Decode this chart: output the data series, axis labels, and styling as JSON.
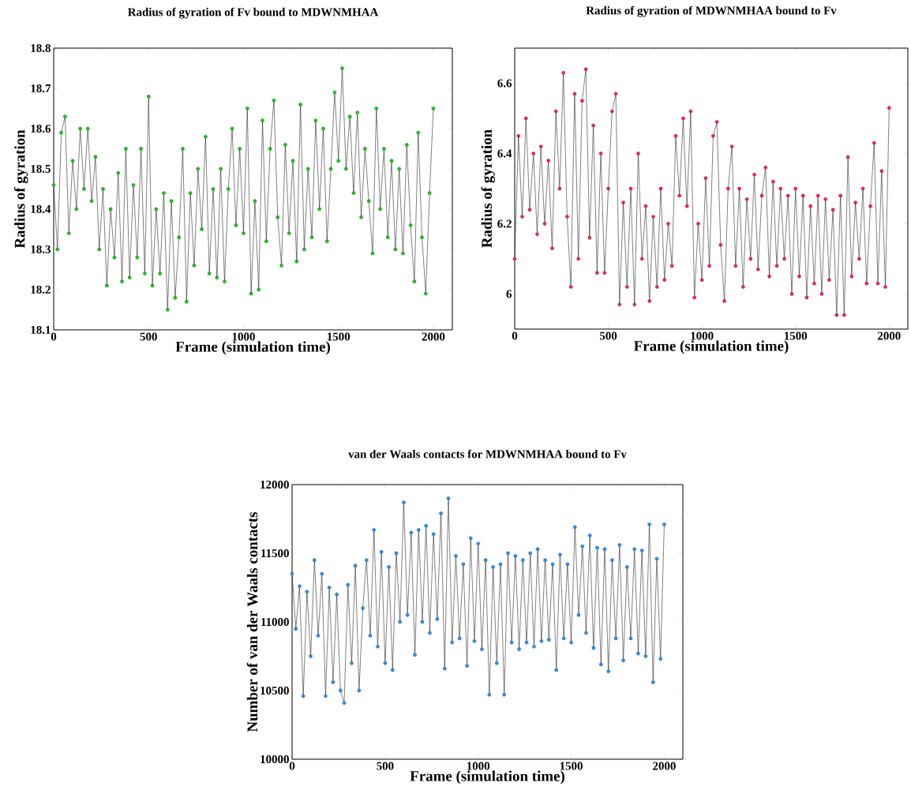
{
  "chart_data": [
    {
      "type": "line",
      "title": "Radius of gyration of Fv bound to MDWNMHAA",
      "xlabel": "Frame (simulation time)",
      "ylabel": "Radius of gyration",
      "marker": "circle",
      "x": [
        0,
        20,
        40,
        60,
        80,
        100,
        120,
        140,
        160,
        180,
        200,
        220,
        240,
        260,
        280,
        300,
        320,
        340,
        360,
        380,
        400,
        420,
        440,
        460,
        480,
        500,
        520,
        540,
        560,
        580,
        600,
        620,
        640,
        660,
        680,
        700,
        720,
        740,
        760,
        780,
        800,
        820,
        840,
        860,
        880,
        900,
        920,
        940,
        960,
        980,
        1000,
        1020,
        1040,
        1060,
        1080,
        1100,
        1120,
        1140,
        1160,
        1180,
        1200,
        1220,
        1240,
        1260,
        1280,
        1300,
        1320,
        1340,
        1360,
        1380,
        1400,
        1420,
        1440,
        1460,
        1480,
        1500,
        1520,
        1540,
        1560,
        1580,
        1600,
        1620,
        1640,
        1660,
        1680,
        1700,
        1720,
        1740,
        1760,
        1780,
        1800,
        1820,
        1840,
        1860,
        1880,
        1900,
        1920,
        1940,
        1960,
        1980,
        2000
      ],
      "series": [
        {
          "color": "#00cc00",
          "values": [
            18.46,
            18.3,
            18.59,
            18.63,
            18.34,
            18.52,
            18.4,
            18.6,
            18.45,
            18.6,
            18.42,
            18.53,
            18.3,
            18.45,
            18.21,
            18.4,
            18.28,
            18.49,
            18.22,
            18.55,
            18.23,
            18.46,
            18.28,
            18.55,
            18.24,
            18.68,
            18.21,
            18.4,
            18.24,
            18.44,
            18.15,
            18.42,
            18.18,
            18.33,
            18.55,
            18.17,
            18.44,
            18.26,
            18.5,
            18.35,
            18.58,
            18.24,
            18.45,
            18.23,
            18.5,
            18.22,
            18.45,
            18.6,
            18.36,
            18.55,
            18.34,
            18.65,
            18.19,
            18.42,
            18.2,
            18.62,
            18.32,
            18.55,
            18.67,
            18.38,
            18.26,
            18.56,
            18.34,
            18.52,
            18.27,
            18.66,
            18.3,
            18.5,
            18.33,
            18.62,
            18.4,
            18.6,
            18.32,
            18.5,
            18.69,
            18.52,
            18.75,
            18.5,
            18.63,
            18.44,
            18.64,
            18.38,
            18.55,
            18.42,
            18.29,
            18.65,
            18.4,
            18.55,
            18.33,
            18.52,
            18.3,
            18.5,
            18.29,
            18.56,
            18.36,
            18.22,
            18.59,
            18.33,
            18.19,
            18.44,
            18.65
          ]
        }
      ],
      "xlim": [
        0,
        2100
      ],
      "xticks": [
        0,
        500,
        1000,
        1500,
        2000
      ],
      "ylim": [
        18.1,
        18.8
      ],
      "yticks": [
        18.1,
        18.2,
        18.3,
        18.4,
        18.5,
        18.6,
        18.7,
        18.8
      ]
    },
    {
      "type": "line",
      "title": "Radius of gyration of MDWNMHAA bound to Fv",
      "xlabel": "Frame (simulation time)",
      "ylabel": "Radius of gyration",
      "marker": "circle",
      "x": [
        0,
        20,
        40,
        60,
        80,
        100,
        120,
        140,
        160,
        180,
        200,
        220,
        240,
        260,
        280,
        300,
        320,
        340,
        360,
        380,
        400,
        420,
        440,
        460,
        480,
        500,
        520,
        540,
        560,
        580,
        600,
        620,
        640,
        660,
        680,
        700,
        720,
        740,
        760,
        780,
        800,
        820,
        840,
        860,
        880,
        900,
        920,
        940,
        960,
        980,
        1000,
        1020,
        1040,
        1060,
        1080,
        1100,
        1120,
        1140,
        1160,
        1180,
        1200,
        1220,
        1240,
        1260,
        1280,
        1300,
        1320,
        1340,
        1360,
        1380,
        1400,
        1420,
        1440,
        1460,
        1480,
        1500,
        1520,
        1540,
        1560,
        1580,
        1600,
        1620,
        1640,
        1660,
        1680,
        1700,
        1720,
        1740,
        1760,
        1780,
        1800,
        1820,
        1840,
        1860,
        1880,
        1900,
        1920,
        1940,
        1960,
        1980,
        2000
      ],
      "series": [
        {
          "color": "#ff1a4d",
          "values": [
            6.1,
            6.45,
            6.22,
            6.5,
            6.24,
            6.4,
            6.17,
            6.42,
            6.2,
            6.38,
            6.13,
            6.52,
            6.3,
            6.63,
            6.22,
            6.02,
            6.57,
            6.1,
            6.55,
            6.64,
            6.16,
            6.48,
            6.06,
            6.4,
            6.06,
            6.3,
            6.52,
            6.57,
            5.97,
            6.26,
            6.02,
            6.3,
            5.97,
            6.4,
            6.1,
            6.25,
            5.98,
            6.22,
            6.02,
            6.3,
            6.04,
            6.2,
            6.08,
            6.45,
            6.28,
            6.5,
            6.25,
            6.52,
            5.99,
            6.2,
            6.04,
            6.33,
            6.08,
            6.45,
            6.49,
            6.14,
            5.98,
            6.3,
            6.42,
            6.08,
            6.3,
            6.02,
            6.27,
            6.1,
            6.34,
            6.07,
            6.28,
            6.36,
            6.05,
            6.32,
            6.08,
            6.3,
            6.1,
            6.28,
            6.0,
            6.3,
            6.05,
            6.28,
            5.99,
            6.25,
            6.03,
            6.28,
            6.0,
            6.27,
            6.04,
            6.24,
            5.94,
            6.28,
            5.94,
            6.39,
            6.05,
            6.26,
            6.1,
            6.3,
            6.03,
            6.25,
            6.43,
            6.03,
            6.35,
            6.02,
            6.53
          ]
        }
      ],
      "xlim": [
        0,
        2100
      ],
      "xticks": [
        0,
        500,
        1000,
        1500,
        2000
      ],
      "ylim": [
        5.9,
        6.7
      ],
      "yticks": [
        6,
        6.2,
        6.4,
        6.6
      ]
    },
    {
      "type": "line",
      "title": "van der Waals contacts for MDWNMHAA bound to Fv",
      "xlabel": "Frame (simulation time)",
      "ylabel": "Number of van der Waals contacts",
      "marker": "circle",
      "x": [
        0,
        20,
        40,
        60,
        80,
        100,
        120,
        140,
        160,
        180,
        200,
        220,
        240,
        260,
        280,
        300,
        320,
        340,
        360,
        380,
        400,
        420,
        440,
        460,
        480,
        500,
        520,
        540,
        560,
        580,
        600,
        620,
        640,
        660,
        680,
        700,
        720,
        740,
        760,
        780,
        800,
        820,
        840,
        860,
        880,
        900,
        920,
        940,
        960,
        980,
        1000,
        1020,
        1040,
        1060,
        1080,
        1100,
        1120,
        1140,
        1160,
        1180,
        1200,
        1220,
        1240,
        1260,
        1280,
        1300,
        1320,
        1340,
        1360,
        1380,
        1400,
        1420,
        1440,
        1460,
        1480,
        1500,
        1520,
        1540,
        1560,
        1580,
        1600,
        1620,
        1640,
        1660,
        1680,
        1700,
        1720,
        1740,
        1760,
        1780,
        1800,
        1820,
        1840,
        1860,
        1880,
        1900,
        1920,
        1940,
        1960,
        1980,
        2000
      ],
      "series": [
        {
          "color": "#1e8fff",
          "values": [
            11350,
            10950,
            11260,
            10460,
            11220,
            10750,
            11450,
            10900,
            11350,
            10460,
            11250,
            10560,
            11200,
            10500,
            10410,
            11270,
            10700,
            11410,
            10500,
            11100,
            11450,
            10900,
            11670,
            10820,
            11510,
            10700,
            11400,
            10650,
            11500,
            11000,
            11870,
            11050,
            11650,
            10760,
            11670,
            11000,
            11700,
            10920,
            11640,
            11020,
            11790,
            10660,
            11900,
            10850,
            11480,
            10880,
            11420,
            10680,
            11610,
            10860,
            11570,
            10800,
            11450,
            10470,
            11400,
            10700,
            11420,
            10470,
            11500,
            10850,
            11480,
            10800,
            11450,
            10850,
            11500,
            10820,
            11530,
            10860,
            11450,
            10870,
            11420,
            10650,
            11490,
            10880,
            11420,
            10850,
            11690,
            11050,
            11550,
            10920,
            11630,
            10810,
            11540,
            10690,
            11530,
            10640,
            11450,
            10880,
            11560,
            10720,
            11400,
            10880,
            11530,
            10770,
            11520,
            10750,
            11710,
            10560,
            11460,
            10730,
            11710
          ]
        }
      ],
      "xlim": [
        0,
        2100
      ],
      "xticks": [
        0,
        500,
        1000,
        1500,
        2000
      ],
      "ylim": [
        10000,
        12000
      ],
      "yticks": [
        10000,
        10500,
        11000,
        11500,
        12000
      ]
    }
  ]
}
